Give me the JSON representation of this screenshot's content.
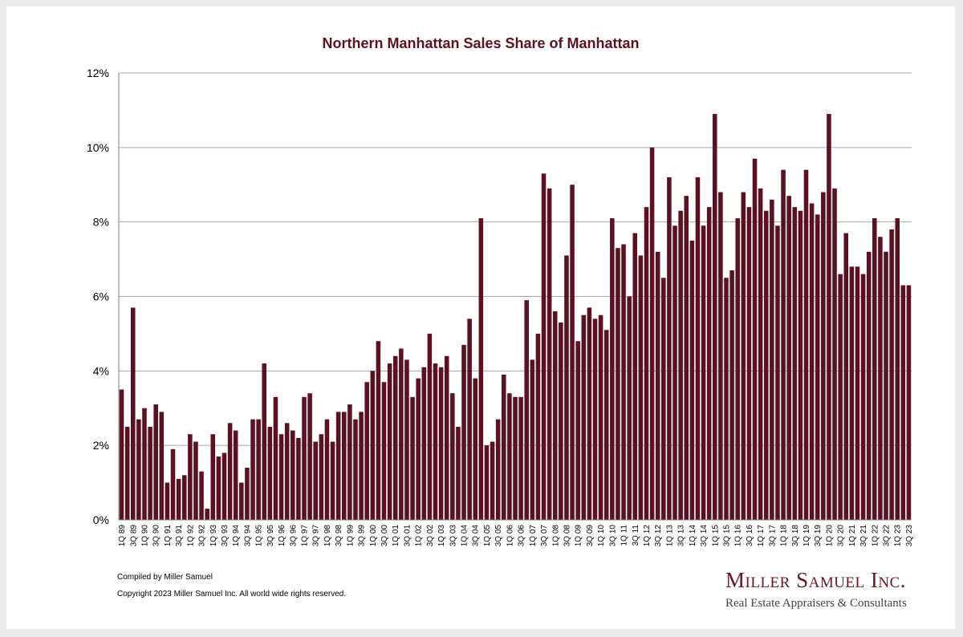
{
  "chart_data": {
    "type": "bar",
    "title": "Northern Manhattan Sales Share of Manhattan",
    "xlabel": "",
    "ylabel": "",
    "ylim": [
      0,
      12
    ],
    "yticks": [
      {
        "value": 0,
        "label": "0%"
      },
      {
        "value": 2,
        "label": "2%"
      },
      {
        "value": 4,
        "label": "4%"
      },
      {
        "value": 6,
        "label": "6%"
      },
      {
        "value": 8,
        "label": "8%"
      },
      {
        "value": 10,
        "label": "10%"
      },
      {
        "value": 12,
        "label": "12%"
      }
    ],
    "grid": true,
    "bar_color": "#5b1220",
    "categories": [
      "1Q 89",
      "2Q 89",
      "3Q 89",
      "4Q 89",
      "1Q 90",
      "2Q 90",
      "3Q 90",
      "4Q 90",
      "1Q 91",
      "2Q 91",
      "3Q 91",
      "4Q 91",
      "1Q 92",
      "2Q 92",
      "3Q 92",
      "4Q 92",
      "1Q 93",
      "2Q 93",
      "3Q 93",
      "4Q 93",
      "1Q 94",
      "2Q 94",
      "3Q 94",
      "4Q 94",
      "1Q 95",
      "2Q 95",
      "3Q 95",
      "4Q 95",
      "1Q 96",
      "2Q 96",
      "3Q 96",
      "4Q 96",
      "1Q 97",
      "2Q 97",
      "3Q 97",
      "4Q 97",
      "1Q 98",
      "2Q 98",
      "3Q 98",
      "4Q 98",
      "1Q 99",
      "2Q 99",
      "3Q 99",
      "4Q 99",
      "1Q 00",
      "2Q 00",
      "3Q 00",
      "4Q 00",
      "1Q 01",
      "2Q 01",
      "3Q 01",
      "4Q 01",
      "1Q 02",
      "2Q 02",
      "3Q 02",
      "4Q 02",
      "1Q 03",
      "2Q 03",
      "3Q 03",
      "4Q 03",
      "1Q 04",
      "2Q 04",
      "3Q 04",
      "4Q 04",
      "1Q 05",
      "2Q 05",
      "3Q 05",
      "4Q 05",
      "1Q 06",
      "2Q 06",
      "3Q 06",
      "4Q 06",
      "1Q 07",
      "2Q 07",
      "3Q 07",
      "4Q 07",
      "1Q 08",
      "2Q 08",
      "3Q 08",
      "4Q 08",
      "1Q 09",
      "2Q 09",
      "3Q 09",
      "4Q 09",
      "1Q 10",
      "2Q 10",
      "3Q 10",
      "4Q 10",
      "1Q 11",
      "2Q 11",
      "3Q 11",
      "4Q 11",
      "1Q 12",
      "2Q 12",
      "3Q 12",
      "4Q 12",
      "1Q 13",
      "2Q 13",
      "3Q 13",
      "4Q 13",
      "1Q 14",
      "2Q 14",
      "3Q 14",
      "4Q 14",
      "1Q 15",
      "2Q 15",
      "3Q 15",
      "4Q 15",
      "1Q 16",
      "2Q 16",
      "3Q 16",
      "4Q 16",
      "1Q 17",
      "2Q 17",
      "3Q 17",
      "4Q 17",
      "1Q 18",
      "2Q 18",
      "3Q 18",
      "4Q 18",
      "1Q 19",
      "2Q 19",
      "3Q 19",
      "4Q 19",
      "1Q 20",
      "2Q 20",
      "3Q 20",
      "4Q 20",
      "1Q 21",
      "2Q 21",
      "3Q 21",
      "4Q 21",
      "1Q 22",
      "2Q 22",
      "3Q 22",
      "4Q 22",
      "1Q 23",
      "2Q 23",
      "3Q 23"
    ],
    "category_labels_shown": [
      "1Q 89",
      "3Q 89",
      "1Q 90",
      "3Q 90",
      "1Q 91",
      "3Q 91",
      "1Q 92",
      "3Q 92",
      "1Q 93",
      "3Q 93",
      "1Q 94",
      "3Q 94",
      "1Q 95",
      "3Q 95",
      "1Q 96",
      "3Q 96",
      "1Q 97",
      "3Q 97",
      "1Q 98",
      "3Q 98",
      "1Q 99",
      "3Q 99",
      "1Q 00",
      "3Q 00",
      "1Q 01",
      "3Q 01",
      "1Q 02",
      "3Q 02",
      "1Q 03",
      "3Q 03",
      "1Q 04",
      "3Q 04",
      "1Q 05",
      "3Q 05",
      "1Q 06",
      "3Q 06",
      "1Q 07",
      "3Q 07",
      "1Q 08",
      "3Q 08",
      "1Q 09",
      "3Q 09",
      "1Q 10",
      "3Q 10",
      "1Q 11",
      "3Q 11",
      "1Q 12",
      "3Q 12",
      "1Q 13",
      "3Q 13",
      "1Q 14",
      "3Q 14",
      "1Q 15",
      "3Q 15",
      "1Q 16",
      "3Q 16",
      "1Q 17",
      "3Q 17",
      "1Q 18",
      "3Q 18",
      "1Q 19",
      "3Q 19",
      "1Q 20",
      "3Q 20",
      "1Q 21",
      "3Q 21",
      "1Q 22",
      "3Q 22",
      "1Q 23",
      "3Q 23"
    ],
    "values": [
      3.5,
      2.5,
      5.7,
      2.7,
      3.0,
      2.5,
      3.1,
      2.9,
      1.0,
      1.9,
      1.1,
      1.2,
      2.3,
      2.1,
      1.3,
      0.3,
      2.3,
      1.7,
      1.8,
      2.6,
      2.4,
      1.0,
      1.4,
      2.7,
      2.7,
      4.2,
      2.5,
      3.3,
      2.3,
      2.6,
      2.4,
      2.2,
      3.3,
      3.4,
      2.1,
      2.3,
      2.7,
      2.1,
      2.9,
      2.9,
      3.1,
      2.7,
      2.9,
      3.7,
      4.0,
      4.8,
      3.7,
      4.2,
      4.4,
      4.6,
      4.3,
      3.3,
      3.8,
      4.1,
      5.0,
      4.2,
      4.1,
      4.4,
      3.4,
      2.5,
      4.7,
      5.4,
      3.8,
      8.1,
      2.0,
      2.1,
      2.7,
      3.9,
      3.4,
      3.3,
      3.3,
      5.9,
      4.3,
      5.0,
      9.3,
      8.9,
      5.6,
      5.3,
      7.1,
      9.0,
      4.8,
      5.5,
      5.7,
      5.4,
      5.5,
      5.1,
      8.1,
      7.3,
      7.4,
      6.0,
      7.7,
      7.1,
      8.4,
      10.0,
      7.2,
      6.5,
      9.2,
      7.9,
      8.3,
      8.7,
      7.5,
      9.2,
      7.9,
      8.4,
      10.9,
      8.8,
      6.5,
      6.7,
      8.1,
      8.8,
      8.4,
      9.7,
      8.9,
      8.3,
      8.6,
      7.9,
      9.4,
      8.7,
      8.4,
      8.3,
      9.4,
      8.5,
      8.2,
      8.8,
      10.9,
      8.9,
      6.6,
      7.7,
      6.8,
      6.8,
      6.6,
      7.2,
      8.1,
      7.6,
      7.2,
      7.8,
      8.1,
      6.3,
      6.3
    ]
  },
  "footer": {
    "compiled": "Compiled by Miller Samuel",
    "copyright": "Copyright 2023 Miller Samuel Inc.  All world wide rights reserved."
  },
  "logo": {
    "name": "Miller Samuel Inc.",
    "tagline": "Real Estate Appraisers & Consultants"
  }
}
